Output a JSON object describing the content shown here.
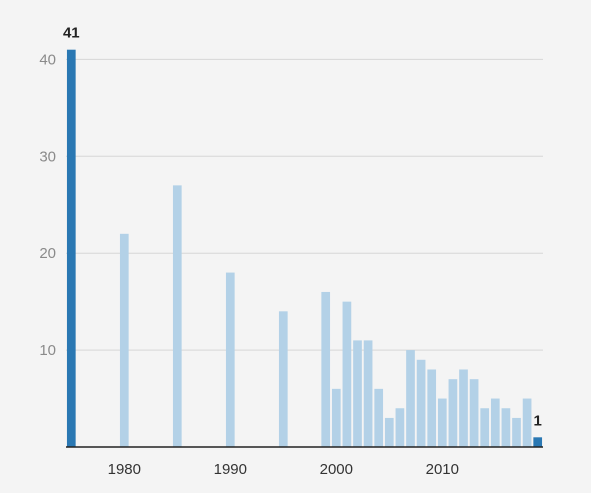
{
  "chart_data": {
    "type": "bar",
    "title": "",
    "xlabel": "",
    "ylabel": "",
    "ylim": [
      0,
      42
    ],
    "y_ticks": [
      10,
      20,
      30,
      40
    ],
    "x_ticks": [
      1980,
      1990,
      2000,
      2010
    ],
    "xlim": [
      1974.5,
      2019.5
    ],
    "grid": true,
    "colors": {
      "highlight": "#2a78b3",
      "default": "#b3d1e7",
      "gridline": "#d6d6d6",
      "axis": "#222222",
      "background": "#f4f4f4"
    },
    "x": [
      1975,
      1980,
      1985,
      1990,
      1995,
      1999,
      2000,
      2001,
      2002,
      2003,
      2004,
      2005,
      2006,
      2007,
      2008,
      2009,
      2010,
      2011,
      2012,
      2013,
      2014,
      2015,
      2016,
      2017,
      2018,
      2019
    ],
    "values": [
      41,
      22,
      27,
      18,
      14,
      16,
      6,
      15,
      11,
      11,
      6,
      3,
      4,
      10,
      9,
      8,
      5,
      7,
      8,
      7,
      4,
      5,
      4,
      3,
      5,
      1
    ],
    "highlighted_x": [
      1975,
      2019
    ],
    "data_labels": [
      {
        "x": 1975,
        "text": "41"
      },
      {
        "x": 2019,
        "text": "1"
      }
    ]
  }
}
